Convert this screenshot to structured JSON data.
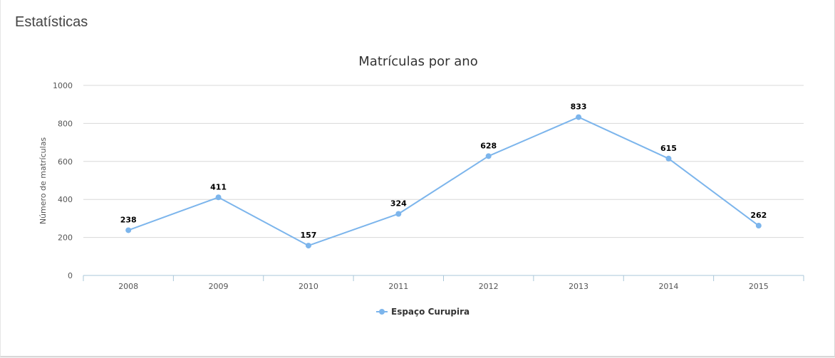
{
  "panel": {
    "title": "Estatísticas"
  },
  "chart_data": {
    "type": "line",
    "title": "Matrículas por ano",
    "xlabel": "",
    "ylabel": "Número de matrículas",
    "categories": [
      "2008",
      "2009",
      "2010",
      "2011",
      "2012",
      "2013",
      "2014",
      "2015"
    ],
    "series": [
      {
        "name": "Espaço Curupira",
        "values": [
          238,
          411,
          157,
          324,
          628,
          833,
          615,
          262
        ],
        "color": "#7cb5ec"
      }
    ],
    "ylim": [
      0,
      1000
    ],
    "yticks": [
      0,
      200,
      400,
      600,
      800,
      1000
    ],
    "grid": true,
    "data_labels": true,
    "legend": "bottom-center"
  }
}
